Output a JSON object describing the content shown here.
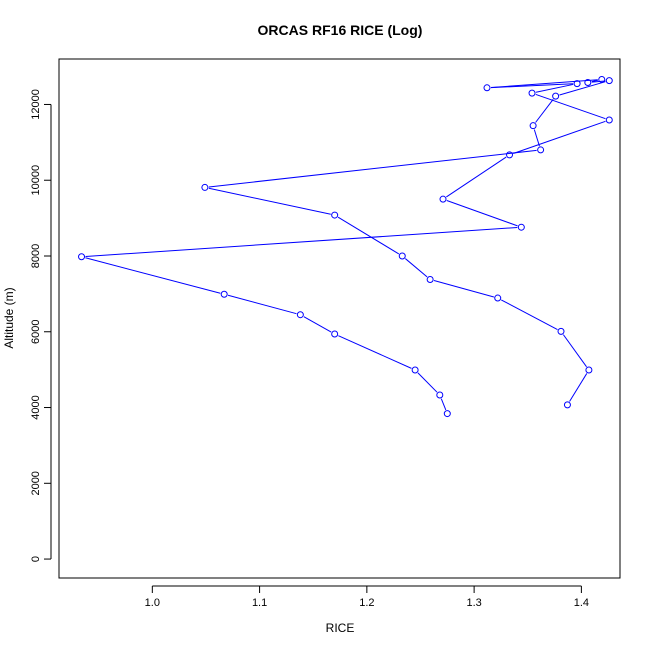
{
  "chart_data": {
    "type": "line",
    "title": "ORCAS RF16 RICE (Log)",
    "xlabel": "RICE",
    "ylabel": "Altitude (m)",
    "xlim": [
      0.913,
      1.436
    ],
    "ylim": [
      -500,
      13200
    ],
    "xticks": [
      {
        "value": 1.0,
        "label": "1.0"
      },
      {
        "value": 1.1,
        "label": "1.1"
      },
      {
        "value": 1.2,
        "label": "1.2"
      },
      {
        "value": 1.3,
        "label": "1.3"
      },
      {
        "value": 1.4,
        "label": "1.4"
      }
    ],
    "yticks": [
      {
        "value": 0,
        "label": "0"
      },
      {
        "value": 2000,
        "label": "2000"
      },
      {
        "value": 4000,
        "label": "4000"
      },
      {
        "value": 6000,
        "label": "6000"
      },
      {
        "value": 8000,
        "label": "8000"
      },
      {
        "value": 10000,
        "label": "10000"
      },
      {
        "value": 12000,
        "label": "12000"
      }
    ],
    "color": "#0000ff",
    "grid": false,
    "series": [
      {
        "points": [
          {
            "x": 1.275,
            "y": 3840
          },
          {
            "x": 1.268,
            "y": 4330
          },
          {
            "x": 1.245,
            "y": 4990
          },
          {
            "x": 1.17,
            "y": 5940
          },
          {
            "x": 1.138,
            "y": 6450
          },
          {
            "x": 1.067,
            "y": 6990
          },
          {
            "x": 0.934,
            "y": 7980
          },
          {
            "x": 1.344,
            "y": 8760
          },
          {
            "x": 1.271,
            "y": 9500
          },
          {
            "x": 1.333,
            "y": 10670
          },
          {
            "x": 1.426,
            "y": 11590
          },
          {
            "x": 1.354,
            "y": 12300
          },
          {
            "x": 1.396,
            "y": 12550
          },
          {
            "x": 1.312,
            "y": 12440
          },
          {
            "x": 1.419,
            "y": 12660
          },
          {
            "x": 1.406,
            "y": 12580
          },
          {
            "x": 1.426,
            "y": 12630
          },
          {
            "x": 1.376,
            "y": 12220
          },
          {
            "x": 1.355,
            "y": 11440
          },
          {
            "x": 1.362,
            "y": 10800
          },
          {
            "x": 1.049,
            "y": 9810
          },
          {
            "x": 1.17,
            "y": 9080
          },
          {
            "x": 1.233,
            "y": 8000
          },
          {
            "x": 1.259,
            "y": 7380
          },
          {
            "x": 1.322,
            "y": 6890
          },
          {
            "x": 1.381,
            "y": 6010
          },
          {
            "x": 1.407,
            "y": 4990
          },
          {
            "x": 1.387,
            "y": 4070
          }
        ]
      }
    ]
  }
}
